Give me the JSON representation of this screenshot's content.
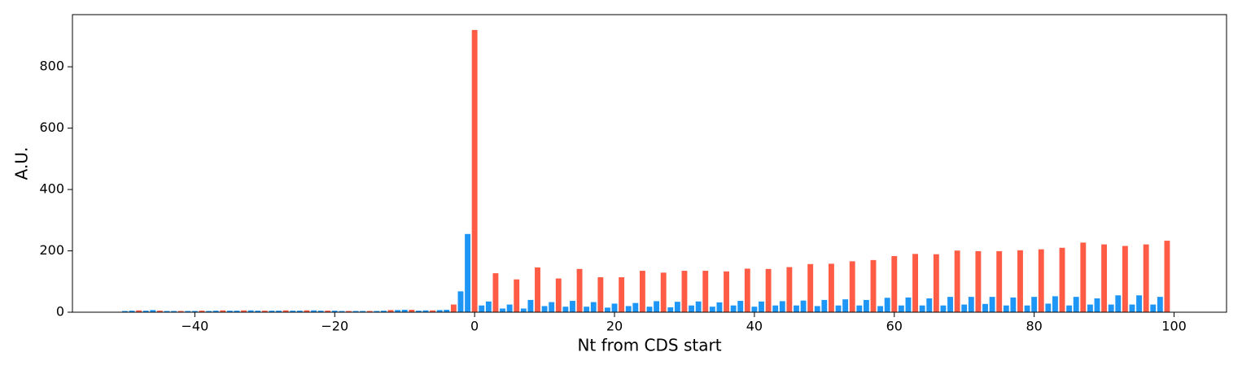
{
  "chart_data": {
    "type": "bar",
    "x_label": "Nt from CDS start",
    "y_label": "A.U.",
    "xlim": [
      -57.5,
      107.5
    ],
    "ylim": [
      0,
      970
    ],
    "xticks": [
      {
        "value": -40,
        "label": "−40"
      },
      {
        "value": -20,
        "label": "−20"
      },
      0,
      20,
      40,
      60,
      80,
      100
    ],
    "yticks": [
      0,
      200,
      400,
      600,
      800
    ],
    "bar_width": 0.8,
    "grid": false,
    "series": [
      {
        "color": "#ff5b45",
        "x": [
          -48,
          -45,
          -42,
          -39,
          -36,
          -33,
          -30,
          -27,
          -24,
          -21,
          -18,
          -15,
          -12,
          -9,
          -6,
          -3,
          0,
          3,
          6,
          9,
          12,
          15,
          18,
          21,
          24,
          27,
          30,
          33,
          36,
          39,
          42,
          45,
          48,
          51,
          54,
          57,
          60,
          63,
          66,
          69,
          72,
          75,
          78,
          81,
          84,
          87,
          90,
          93,
          96,
          99
        ],
        "values": [
          6,
          5,
          4,
          5,
          6,
          6,
          5,
          6,
          6,
          5,
          4,
          4,
          7,
          8,
          6,
          25,
          920,
          127,
          107,
          146,
          110,
          141,
          114,
          114,
          135,
          129,
          135,
          135,
          133,
          142,
          141,
          147,
          157,
          158,
          166,
          170,
          183,
          190,
          189,
          201,
          199,
          199,
          202,
          205,
          210,
          227,
          221,
          216,
          221,
          233
        ]
      },
      {
        "color": "#1e96f5",
        "x": [
          -50,
          -49,
          -47,
          -46,
          -44,
          -43,
          -41,
          -40,
          -38,
          -37,
          -35,
          -34,
          -32,
          -31,
          -29,
          -28,
          -26,
          -25,
          -23,
          -22,
          -20,
          -19,
          -17,
          -16,
          -14,
          -13,
          -11,
          -10,
          -8,
          -7,
          -5,
          -4,
          -2,
          -1,
          1,
          2,
          4,
          5,
          7,
          8,
          10,
          11,
          13,
          14,
          16,
          17,
          19,
          20,
          22,
          23,
          25,
          26,
          28,
          29,
          31,
          32,
          34,
          35,
          37,
          38,
          40,
          41,
          43,
          44,
          46,
          47,
          49,
          50,
          52,
          53,
          55,
          56,
          58,
          59,
          61,
          62,
          64,
          65,
          67,
          68,
          70,
          71,
          73,
          74,
          76,
          77,
          79,
          80,
          82,
          83,
          85,
          86,
          88,
          89,
          91,
          92,
          94,
          95,
          97,
          98
        ],
        "values": [
          4,
          5,
          5,
          7,
          4,
          4,
          4,
          4,
          4,
          5,
          5,
          5,
          6,
          5,
          5,
          5,
          5,
          5,
          6,
          5,
          5,
          4,
          4,
          4,
          4,
          5,
          7,
          8,
          5,
          6,
          7,
          8,
          68,
          255,
          22,
          35,
          12,
          25,
          12,
          40,
          20,
          33,
          18,
          37,
          18,
          33,
          15,
          28,
          20,
          30,
          18,
          36,
          16,
          34,
          22,
          35,
          18,
          32,
          22,
          37,
          18,
          35,
          22,
          36,
          22,
          38,
          20,
          40,
          22,
          42,
          22,
          40,
          20,
          47,
          22,
          48,
          22,
          45,
          22,
          50,
          25,
          50,
          27,
          50,
          22,
          48,
          22,
          50,
          28,
          52,
          22,
          50,
          25,
          45,
          25,
          55,
          25,
          55,
          25,
          50
        ]
      }
    ]
  }
}
